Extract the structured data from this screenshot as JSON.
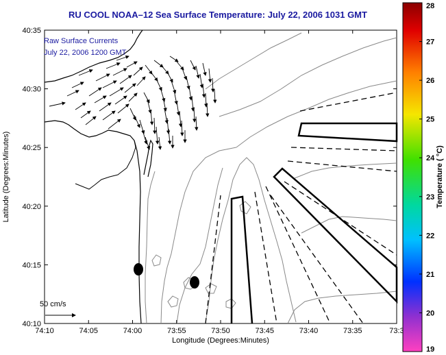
{
  "title": "RU COOL  NOAA–12  Sea Surface Temperature:  July 22, 2006 1031 GMT",
  "annotations": {
    "line1": "Raw Surface Currents",
    "line2": "July 22, 2006 1200 GMT"
  },
  "scale_label": "50 cm/s",
  "axes": {
    "xlabel": "Longitude (Degrees:Minutes)",
    "ylabel": "Latitude (Degrees:Minutes)",
    "xticks": [
      "74:10",
      "74:05",
      "74:00",
      "73:55",
      "73:50",
      "73:45",
      "73:40",
      "73:35",
      "73:3"
    ],
    "yticks": [
      "40:35",
      "40:30",
      "40:25",
      "40:20",
      "40:15",
      "40:10"
    ]
  },
  "colorbar": {
    "label": "Temperature ( °C)",
    "ticks": [
      "28",
      "27",
      "26",
      "25",
      "24",
      "23",
      "22",
      "21",
      "20",
      "19"
    ]
  }
}
